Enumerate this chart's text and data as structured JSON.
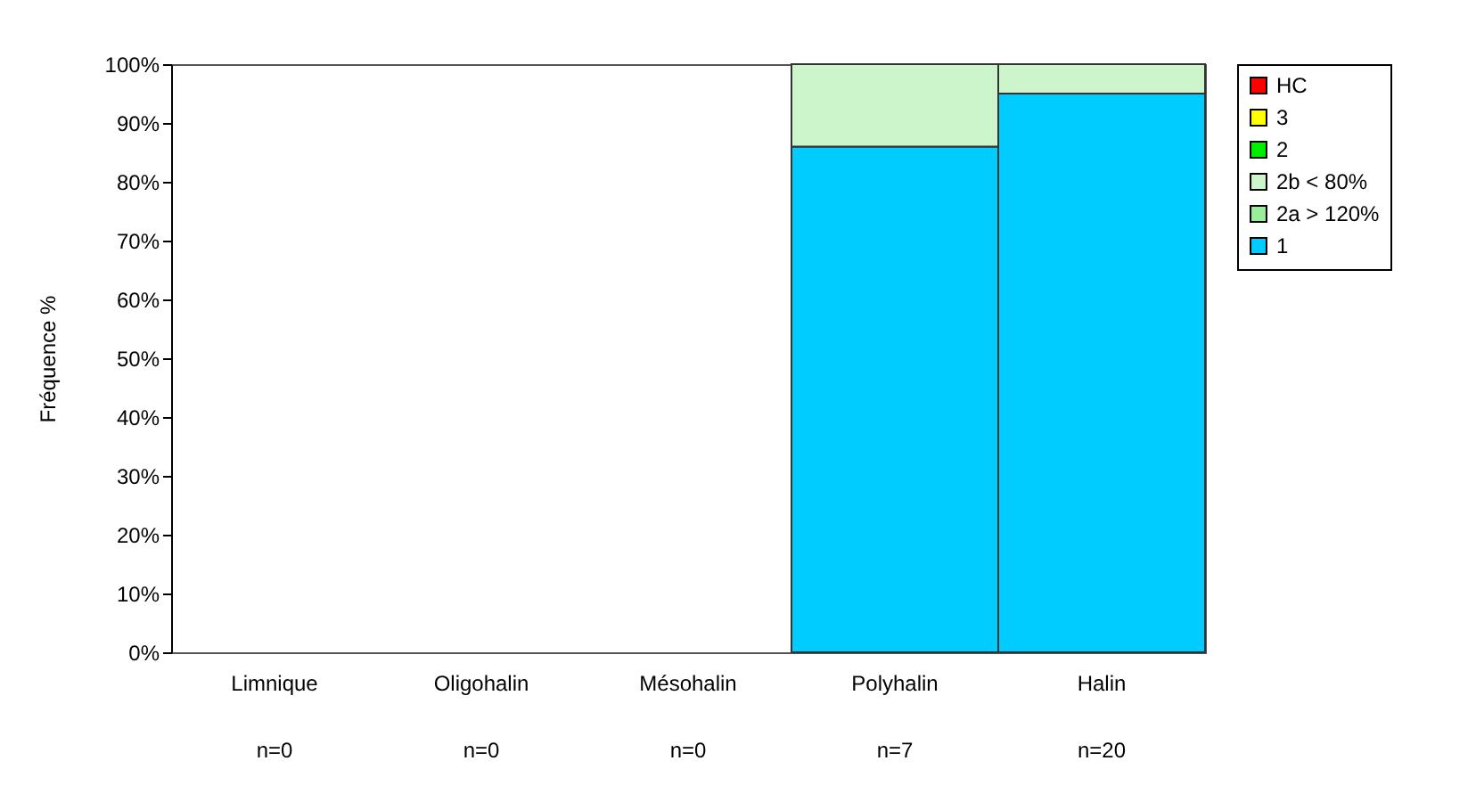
{
  "chart_data": {
    "type": "bar",
    "stacked": true,
    "ylabel": "Fréquence %",
    "categories": [
      "Limnique",
      "Oligohalin",
      "Mésohalin",
      "Polyhalin",
      "Halin"
    ],
    "annotations": [
      "n=0",
      "n=0",
      "n=0",
      "n=7",
      "n=20"
    ],
    "series": [
      {
        "name": "1",
        "color": "#00ccff",
        "values": [
          null,
          null,
          null,
          86,
          95
        ]
      },
      {
        "name": "2a > 120%",
        "color": "#99ee99",
        "values": [
          null,
          null,
          null,
          null,
          null
        ]
      },
      {
        "name": "2b < 80%",
        "color": "#ccf5cc",
        "values": [
          null,
          null,
          null,
          14,
          5
        ]
      },
      {
        "name": "2",
        "color": "#00ee00",
        "values": [
          null,
          null,
          null,
          null,
          null
        ]
      },
      {
        "name": "3",
        "color": "#ffff00",
        "values": [
          null,
          null,
          null,
          null,
          null
        ]
      },
      {
        "name": "HC",
        "color": "#ff0000",
        "values": [
          null,
          null,
          null,
          null,
          null
        ]
      }
    ],
    "ylim": [
      0,
      100
    ],
    "yticks": [
      {
        "value": 0,
        "label": "0%"
      },
      {
        "value": 10,
        "label": "10%"
      },
      {
        "value": 20,
        "label": "20%"
      },
      {
        "value": 30,
        "label": "30%"
      },
      {
        "value": 40,
        "label": "40%"
      },
      {
        "value": 50,
        "label": "50%"
      },
      {
        "value": 60,
        "label": "60%"
      },
      {
        "value": 70,
        "label": "70%"
      },
      {
        "value": 80,
        "label": "80%"
      },
      {
        "value": 90,
        "label": "90%"
      },
      {
        "value": 100,
        "label": "100%"
      }
    ],
    "grid": false,
    "legend": "right"
  }
}
